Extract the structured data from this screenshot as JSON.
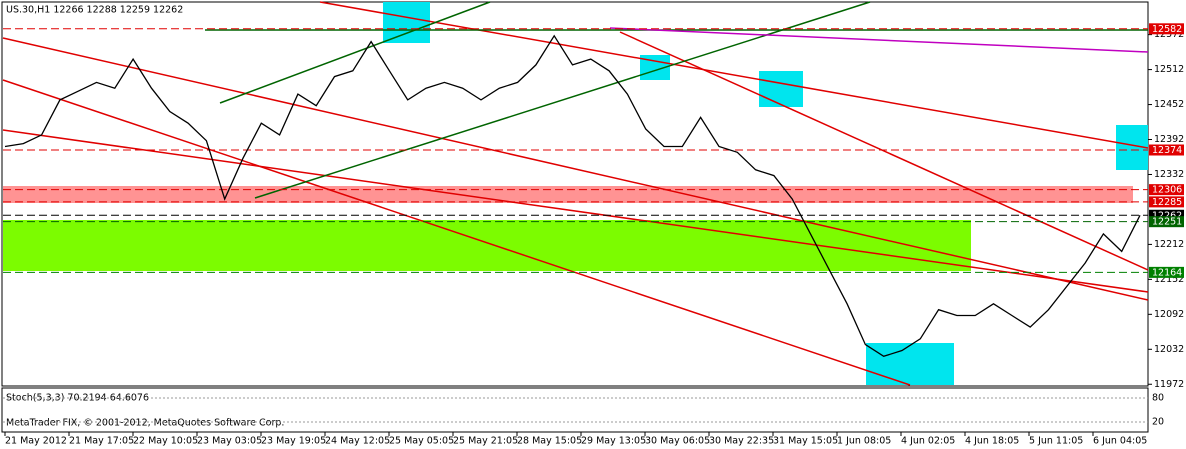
{
  "chart_data": {
    "type": "line",
    "title": "US.30,H1  12266 12288 12259 12262",
    "indicator": "Stoch(5,3,3) 70.2194 64.6076",
    "footer": "MetaTrader FIX, © 2001-2012, MetaQuotes Software Corp.",
    "color": "#000000",
    "values": [
      12380,
      12385,
      12400,
      12460,
      12475,
      12490,
      12480,
      12530,
      12480,
      12440,
      12420,
      12390,
      12290,
      12360,
      12420,
      12400,
      12470,
      12450,
      12500,
      12510,
      12560,
      12510,
      12460,
      12480,
      12490,
      12480,
      12460,
      12480,
      12490,
      12520,
      12570,
      12520,
      12530,
      12510,
      12470,
      12410,
      12380,
      12380,
      12430,
      12380,
      12370,
      12340,
      12330,
      12290,
      12230,
      12170,
      12110,
      12040,
      12020,
      12030,
      12050,
      12100,
      12090,
      12090,
      12110,
      12090,
      12070,
      12100,
      12140,
      12180,
      12230,
      12200,
      12262
    ],
    "ylim": [
      11969,
      12628
    ],
    "yticks": [
      12572,
      12512,
      12452,
      12392,
      12332,
      12212,
      12152,
      12092,
      12032,
      11972
    ],
    "levels": [
      {
        "value": 12582,
        "color": "#e00000"
      },
      {
        "value": 12374,
        "color": "#e00000"
      },
      {
        "value": 12306,
        "color": "#e00000"
      },
      {
        "value": 12285,
        "color": "#e00000"
      },
      {
        "value": 12262,
        "color": "#000000"
      },
      {
        "value": 12251,
        "color": "#006400"
      },
      {
        "value": 12164,
        "color": "#008000"
      }
    ],
    "stoch_ylim": [
      0,
      100
    ],
    "stoch_yticks": [
      80,
      20
    ],
    "xlabels": [
      "21 May 2012",
      "21 May 17:05",
      "22 May 10:05",
      "23 May 03:05",
      "23 May 19:05",
      "24 May 12:05",
      "25 May 05:05",
      "25 May 21:05",
      "28 May 15:05",
      "29 May 13:05",
      "30 May 06:05",
      "30 May 22:35",
      "31 May 15:05",
      "1 Jun 08:05",
      "4 Jun 02:05",
      "4 Jun 18:05",
      "5 Jun 11:05",
      "6 Jun 04:05"
    ]
  }
}
